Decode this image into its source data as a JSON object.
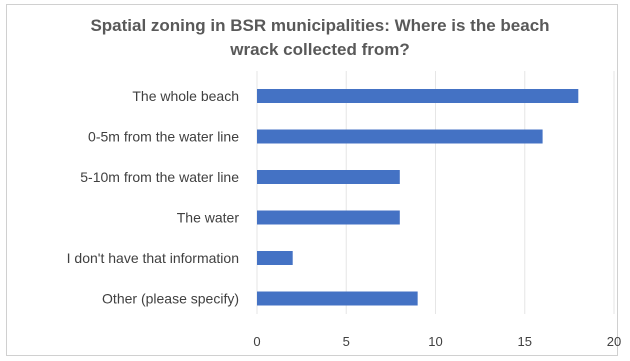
{
  "chart_data": {
    "type": "bar",
    "orientation": "horizontal",
    "title_lines": [
      "Spatial zoning in BSR municipalities: Where is the beach",
      "wrack collected from?"
    ],
    "categories": [
      "The whole beach",
      "0-5m from the water line",
      "5-10m from the water line",
      "The water",
      "I don't have that information",
      "Other (please specify)"
    ],
    "values": [
      18,
      16,
      8,
      8,
      2,
      9
    ],
    "xlim": [
      0,
      20
    ],
    "xticks": [
      "0",
      "5",
      "10",
      "15",
      "20"
    ],
    "bar_color": "#4472c4",
    "grid": true,
    "legend": "none"
  }
}
